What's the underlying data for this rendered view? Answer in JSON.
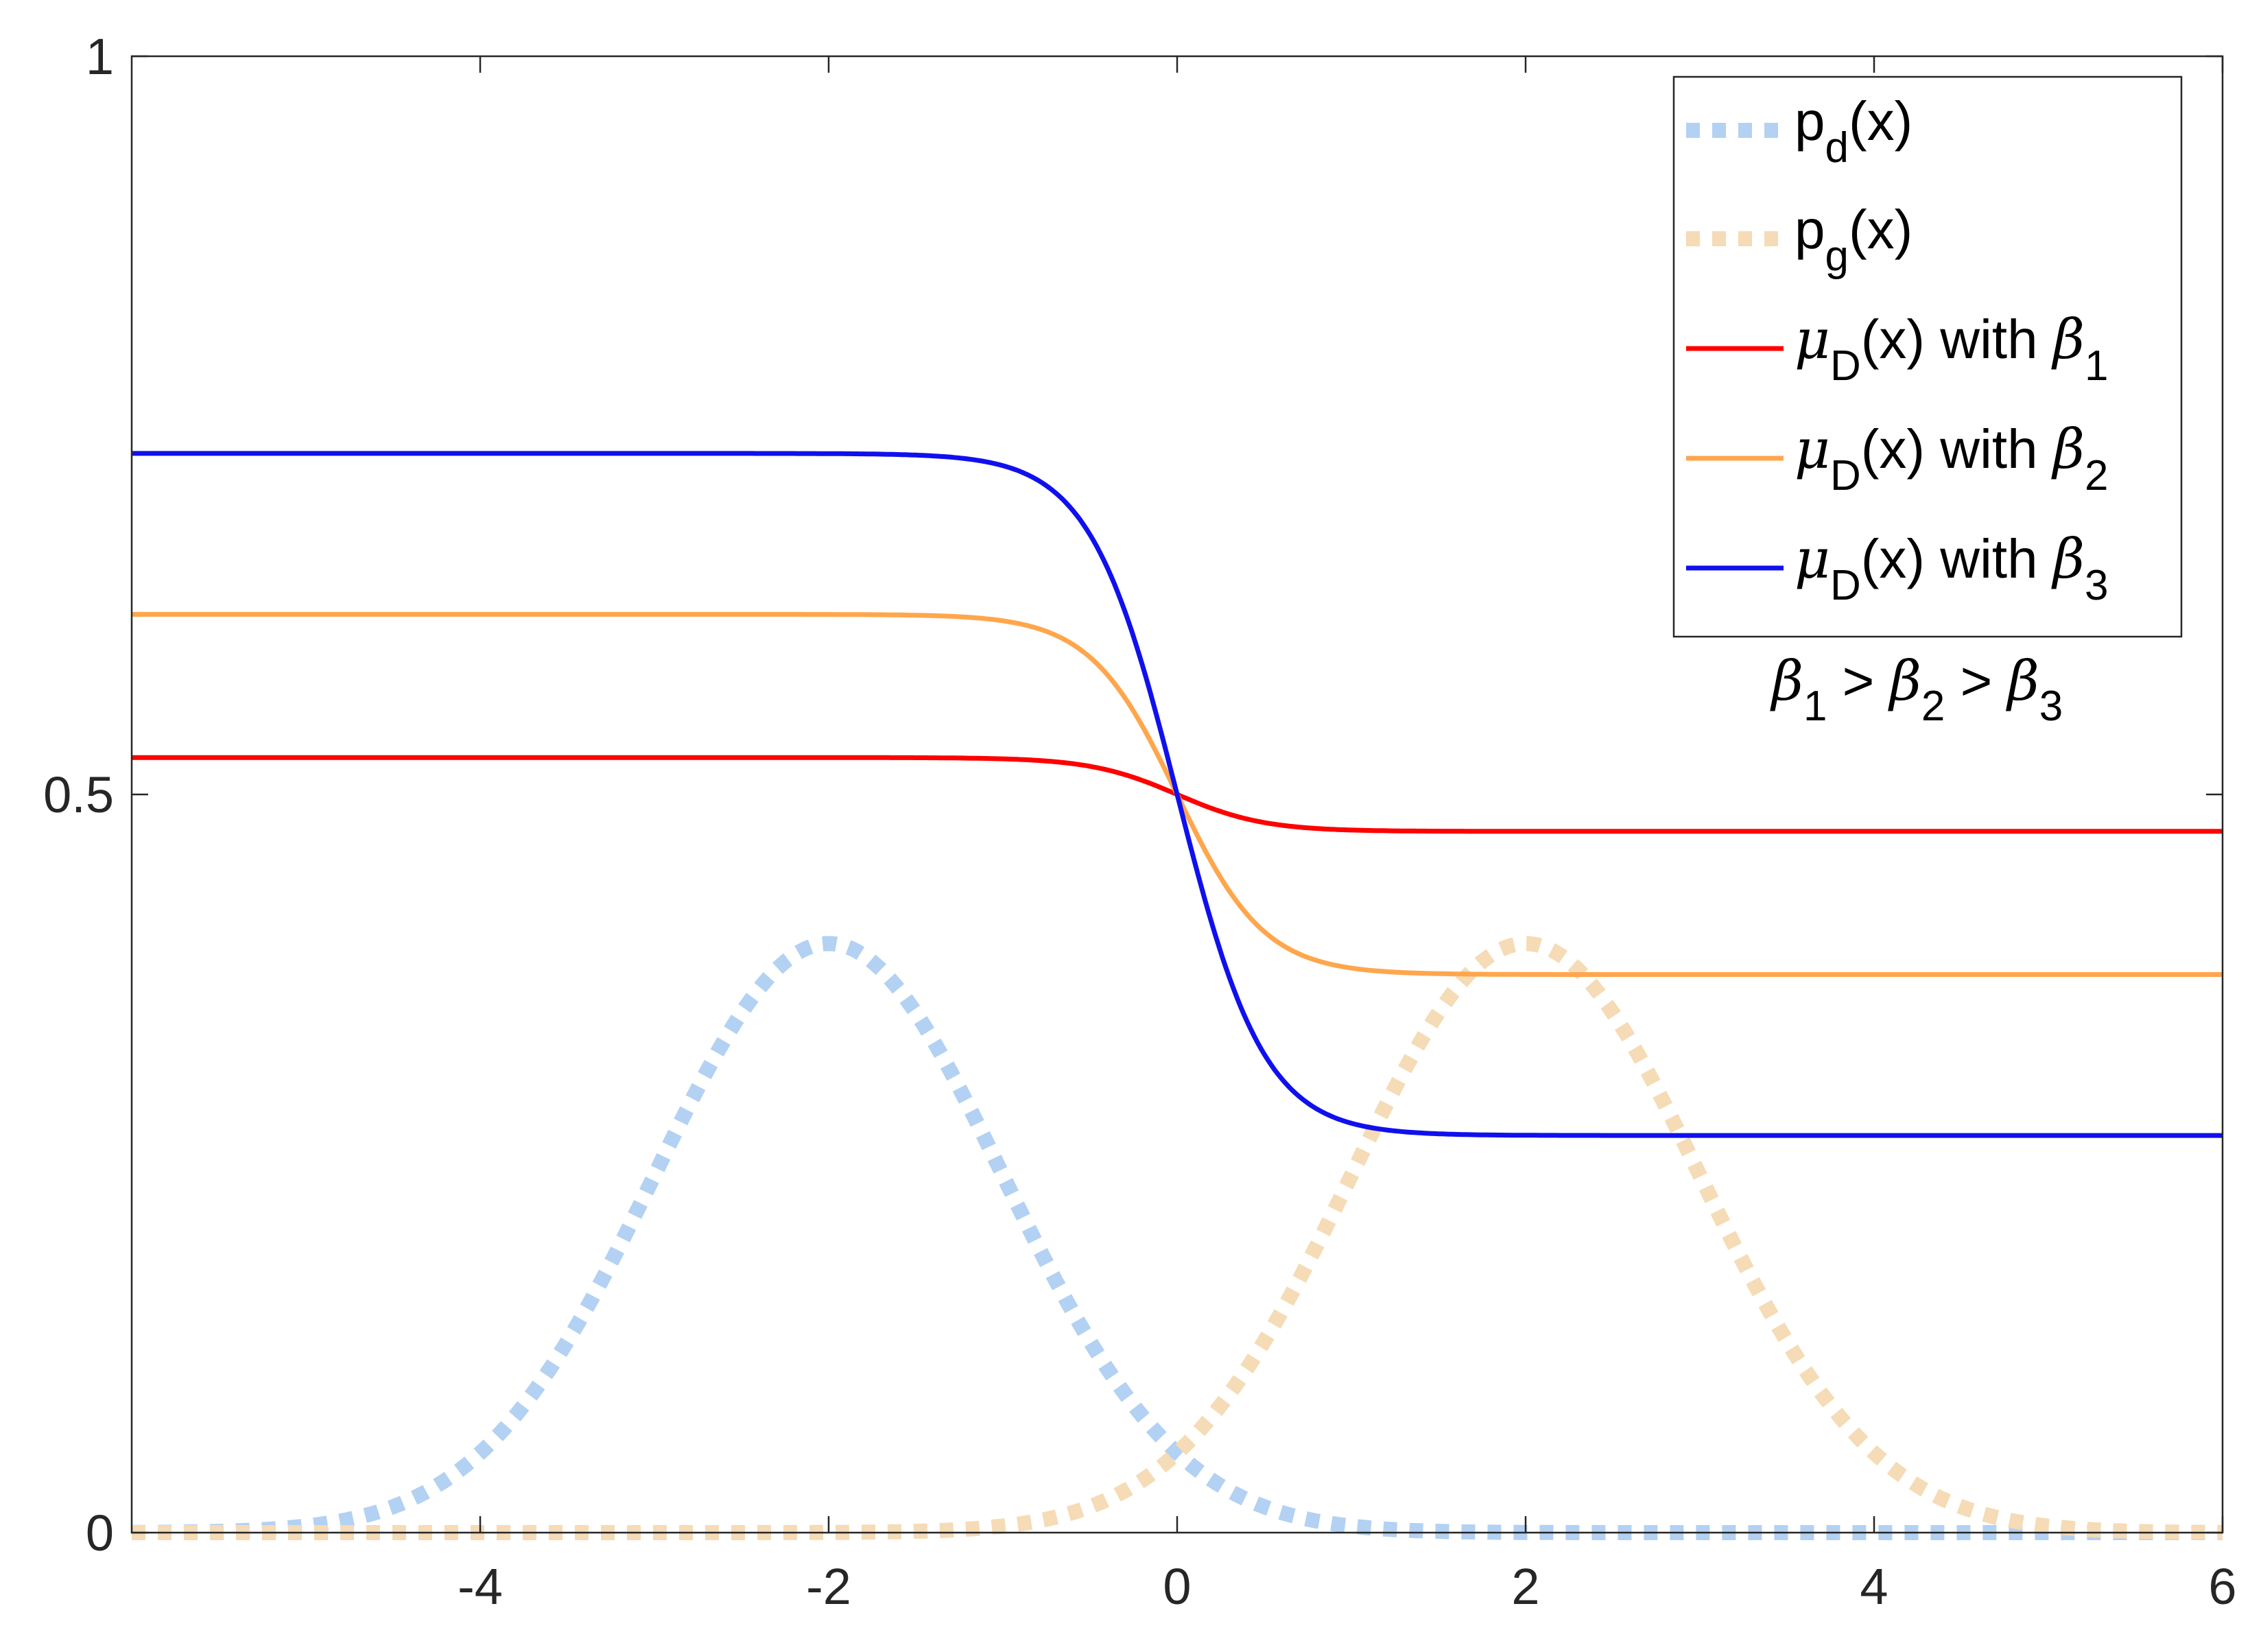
{
  "chart_data": {
    "type": "line",
    "title": "",
    "xlabel": "",
    "ylabel": "",
    "xlim": [
      -6,
      6
    ],
    "ylim": [
      0,
      1
    ],
    "x_ticks": [
      -4,
      -2,
      0,
      2,
      4,
      6
    ],
    "x_tick_labels": [
      "-4",
      "-2",
      "0",
      "2",
      "4",
      "6"
    ],
    "y_ticks": [
      0,
      0.5,
      1
    ],
    "y_tick_labels": [
      "0",
      "0.5",
      "1"
    ],
    "grid": false,
    "legend_position": "top-right",
    "series": [
      {
        "key": "pd",
        "legend": {
          "main": "p",
          "sub": "d",
          "tail": "(x)"
        },
        "color": "#b3d1f2",
        "style": "dotted",
        "kind": "gaussian",
        "mean": -2,
        "sigma": 1,
        "peak": 0.399
      },
      {
        "key": "pg",
        "legend": {
          "main": "p",
          "sub": "g",
          "tail": "(x)"
        },
        "color": "#f5dbb6",
        "style": "dotted",
        "kind": "gaussian",
        "mean": 2,
        "sigma": 1,
        "peak": 0.399
      },
      {
        "key": "b1",
        "legend": {
          "mu": "μ",
          "sub": "D",
          "tail": "(x) with ",
          "beta": "β",
          "beta_sub": "1"
        },
        "color": "#ff0000",
        "style": "solid",
        "kind": "sigmoid",
        "left": 0.525,
        "right": 0.475,
        "steepness": 4
      },
      {
        "key": "b2",
        "legend": {
          "mu": "μ",
          "sub": "D",
          "tail": "(x) with ",
          "beta": "β",
          "beta_sub": "2"
        },
        "color": "#ffa64d",
        "style": "solid",
        "kind": "sigmoid",
        "left": 0.622,
        "right": 0.378,
        "steepness": 4
      },
      {
        "key": "b3",
        "legend": {
          "mu": "μ",
          "sub": "D",
          "tail": "(x) with ",
          "beta": "β",
          "beta_sub": "3"
        },
        "color": "#1010ee",
        "style": "solid",
        "kind": "sigmoid",
        "left": 0.731,
        "right": 0.269,
        "steepness": 4
      }
    ],
    "annotation": {
      "beta": "β",
      "subs": [
        "1",
        "2",
        "3"
      ],
      "op": " > "
    }
  }
}
